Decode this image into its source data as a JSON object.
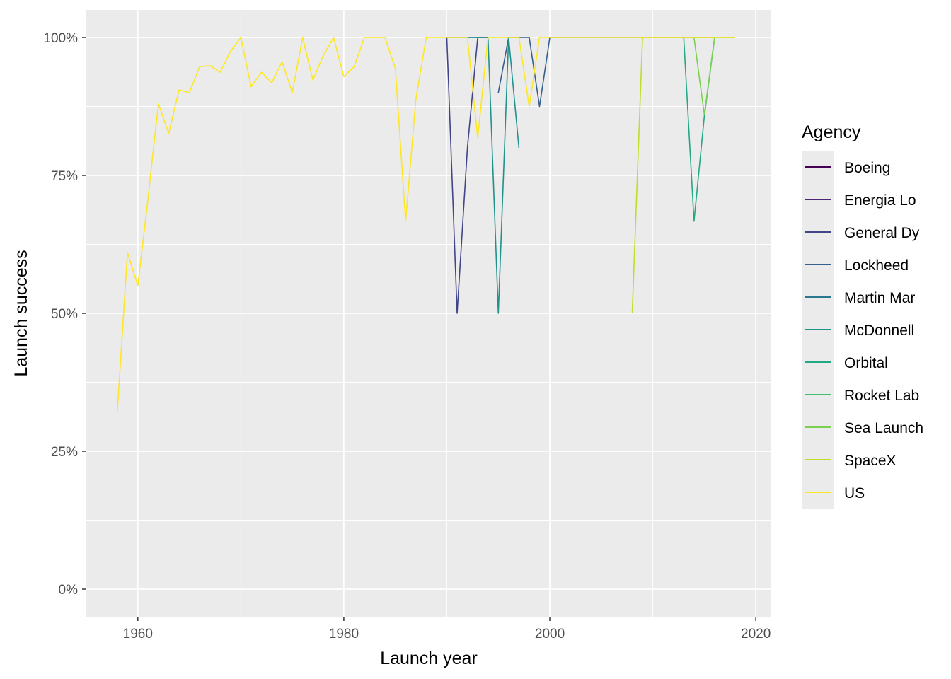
{
  "chart_data": {
    "type": "line",
    "title": "",
    "xlabel": "Launch year",
    "ylabel": "Launch success",
    "xlim": [
      1955,
      2021.5
    ],
    "ylim": [
      -0.05,
      1.05
    ],
    "x_ticks": [
      1960,
      1980,
      2000,
      2020
    ],
    "x_tick_labels": [
      "1960",
      "1980",
      "2000",
      "2020"
    ],
    "y_ticks": [
      0,
      0.25,
      0.5,
      0.75,
      1.0
    ],
    "y_tick_labels": [
      "0%",
      "25%",
      "50%",
      "75%",
      "100%"
    ],
    "grid": true,
    "panel_background": "#ebebeb",
    "legend": {
      "title": "Agency",
      "placement": "right"
    },
    "series": [
      {
        "name": "Boeing",
        "color": "#440154",
        "points": []
      },
      {
        "name": "Energia Lo",
        "color": "#482475",
        "points": []
      },
      {
        "name": "General Dy",
        "color": "#414487",
        "points": [
          [
            1990,
            1.0
          ],
          [
            1991,
            0.5
          ],
          [
            1992,
            0.8
          ],
          [
            1993,
            1.0
          ],
          [
            1994,
            1.0
          ]
        ]
      },
      {
        "name": "Lockheed",
        "color": "#355f8d",
        "points": [
          [
            1995,
            0.9
          ],
          [
            1996,
            1.0
          ],
          [
            1997,
            1.0
          ],
          [
            1998,
            1.0
          ],
          [
            1999,
            0.875
          ],
          [
            2000,
            1.0
          ],
          [
            2001,
            1.0
          ],
          [
            2002,
            1.0
          ],
          [
            2003,
            1.0
          ],
          [
            2004,
            1.0
          ],
          [
            2005,
            1.0
          ],
          [
            2006,
            1.0
          ],
          [
            2007,
            1.0
          ],
          [
            2008,
            1.0
          ],
          [
            2009,
            1.0
          ],
          [
            2010,
            1.0
          ],
          [
            2011,
            1.0
          ],
          [
            2012,
            1.0
          ],
          [
            2013,
            1.0
          ],
          [
            2014,
            1.0
          ],
          [
            2015,
            1.0
          ],
          [
            2016,
            1.0
          ]
        ]
      },
      {
        "name": "Martin Mar",
        "color": "#2a788e",
        "points": [
          [
            1990,
            1.0
          ],
          [
            1991,
            1.0
          ],
          [
            1992,
            1.0
          ],
          [
            1993,
            1.0
          ],
          [
            1994,
            1.0
          ]
        ]
      },
      {
        "name": "McDonnell",
        "color": "#21918c",
        "points": [
          [
            1992,
            1.0
          ],
          [
            1993,
            1.0
          ],
          [
            1994,
            1.0
          ],
          [
            1995,
            0.5
          ],
          [
            1996,
            1.0
          ],
          [
            1997,
            0.8
          ]
        ]
      },
      {
        "name": "Orbital",
        "color": "#22a884",
        "points": [
          [
            2013,
            1.0
          ],
          [
            2014,
            0.667
          ],
          [
            2015,
            0.857
          ],
          [
            2016,
            1.0
          ],
          [
            2017,
            1.0
          ],
          [
            2018,
            1.0
          ]
        ]
      },
      {
        "name": "Rocket Lab",
        "color": "#44bf70",
        "points": []
      },
      {
        "name": "Sea Launch",
        "color": "#7ad151",
        "points": [
          [
            2014,
            1.0
          ],
          [
            2015,
            0.86
          ],
          [
            2016,
            1.0
          ],
          [
            2017,
            1.0
          ],
          [
            2018,
            1.0
          ]
        ]
      },
      {
        "name": "SpaceX",
        "color": "#bddf26",
        "points": [
          [
            2008,
            0.5
          ],
          [
            2009,
            1.0
          ],
          [
            2010,
            1.0
          ],
          [
            2011,
            1.0
          ],
          [
            2012,
            1.0
          ],
          [
            2013,
            1.0
          ],
          [
            2014,
            1.0
          ],
          [
            2015,
            1.0
          ],
          [
            2016,
            1.0
          ],
          [
            2017,
            1.0
          ],
          [
            2018,
            1.0
          ]
        ]
      },
      {
        "name": "US",
        "color": "#fde725",
        "points": [
          [
            1958,
            0.32
          ],
          [
            1959,
            0.61
          ],
          [
            1960,
            0.55
          ],
          [
            1961,
            0.71
          ],
          [
            1962,
            0.88
          ],
          [
            1963,
            0.826
          ],
          [
            1964,
            0.905
          ],
          [
            1965,
            0.9
          ],
          [
            1966,
            0.947
          ],
          [
            1967,
            0.949
          ],
          [
            1968,
            0.937
          ],
          [
            1969,
            0.975
          ],
          [
            1970,
            1.0
          ],
          [
            1971,
            0.911
          ],
          [
            1972,
            0.937
          ],
          [
            1973,
            0.918
          ],
          [
            1974,
            0.956
          ],
          [
            1975,
            0.9
          ],
          [
            1976,
            1.0
          ],
          [
            1977,
            0.923
          ],
          [
            1978,
            0.967
          ],
          [
            1979,
            1.0
          ],
          [
            1980,
            0.929
          ],
          [
            1981,
            0.947
          ],
          [
            1982,
            1.0
          ],
          [
            1983,
            1.0
          ],
          [
            1984,
            1.0
          ],
          [
            1985,
            0.944
          ],
          [
            1986,
            0.667
          ],
          [
            1987,
            0.889
          ],
          [
            1988,
            1.0
          ],
          [
            1989,
            1.0
          ],
          [
            1990,
            1.0
          ],
          [
            1991,
            1.0
          ],
          [
            1992,
            1.0
          ],
          [
            1993,
            0.818
          ],
          [
            1994,
            1.0
          ],
          [
            1995,
            1.0
          ],
          [
            1996,
            1.0
          ],
          [
            1997,
            1.0
          ],
          [
            1998,
            0.875
          ],
          [
            1999,
            1.0
          ],
          [
            2000,
            1.0
          ],
          [
            2001,
            1.0
          ],
          [
            2002,
            1.0
          ],
          [
            2003,
            1.0
          ],
          [
            2004,
            1.0
          ],
          [
            2005,
            1.0
          ],
          [
            2006,
            1.0
          ],
          [
            2007,
            1.0
          ],
          [
            2008,
            1.0
          ],
          [
            2009,
            1.0
          ],
          [
            2010,
            1.0
          ],
          [
            2011,
            1.0
          ],
          [
            2012,
            1.0
          ],
          [
            2013,
            1.0
          ],
          [
            2014,
            1.0
          ],
          [
            2015,
            1.0
          ],
          [
            2016,
            1.0
          ],
          [
            2017,
            1.0
          ],
          [
            2018,
            1.0
          ]
        ]
      }
    ]
  }
}
